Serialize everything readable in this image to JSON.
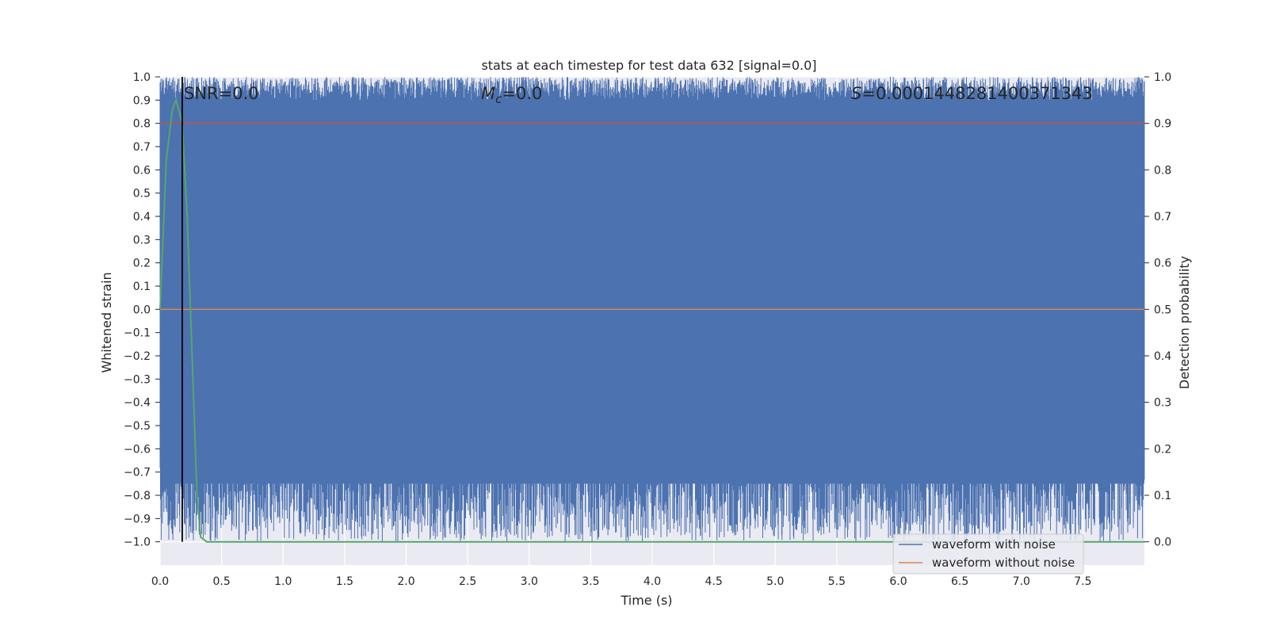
{
  "chart_data": {
    "type": "line",
    "title": "stats at each timestep for test data 632 [signal=0.0]",
    "xlabel": "Time (s)",
    "ylabel": "Whitened strain",
    "y2label": "Detection probability",
    "xlim": [
      0.0,
      8.0
    ],
    "ylim": [
      -1.1,
      1.0
    ],
    "y2lim": [
      -0.05,
      1.0
    ],
    "xticks": [
      "0.0",
      "0.5",
      "1.0",
      "1.5",
      "2.0",
      "2.5",
      "3.0",
      "3.5",
      "4.0",
      "4.5",
      "5.0",
      "5.5",
      "6.0",
      "6.5",
      "7.0",
      "7.5"
    ],
    "yticks": [
      "1.0",
      "0.9",
      "0.8",
      "0.7",
      "0.6",
      "0.5",
      "0.4",
      "0.3",
      "0.2",
      "0.1",
      "0.0",
      "−0.1",
      "−0.2",
      "−0.3",
      "−0.4",
      "−0.5",
      "−0.6",
      "−0.7",
      "−0.8",
      "−0.9",
      "−1.0"
    ],
    "y2ticks": [
      "1.0",
      "0.9",
      "0.8",
      "0.7",
      "0.6",
      "0.5",
      "0.4",
      "0.3",
      "0.2",
      "0.1",
      "0.0"
    ],
    "grid": true,
    "legend_position": "lower-right",
    "annotations": {
      "snr": "SNR=0.0",
      "mc_symbol": "M",
      "mc_sub": "c",
      "mc_value": "=0.0",
      "s_symbol": "S",
      "s_value": "=0.0001448281400371343"
    },
    "series": [
      {
        "name": "waveform with noise",
        "color": "#4c72b0",
        "axis": "left",
        "values": "dense noise filling approximately -1.0 to 1.0"
      },
      {
        "name": "waveform without noise",
        "color": "#dd8452",
        "axis": "left",
        "values": [
          [
            0.0,
            0.0
          ],
          [
            8.0,
            0.0
          ]
        ]
      },
      {
        "axis": "right",
        "color": "#55a868",
        "x": [
          0.0,
          0.05,
          0.1,
          0.13,
          0.18,
          0.22,
          0.26,
          0.3,
          0.33,
          0.38,
          8.0
        ],
        "values": [
          0.5,
          0.82,
          0.93,
          0.95,
          0.9,
          0.7,
          0.4,
          0.1,
          0.01,
          0.0,
          0.0
        ]
      },
      {
        "axis": "right",
        "color": "#dd8452",
        "x": [
          0.0,
          8.0
        ],
        "values": [
          0.9,
          0.9
        ]
      },
      {
        "axis": "left",
        "color": "#000000",
        "type": "vline",
        "x": 0.18,
        "ylim": [
          -1.0,
          1.0
        ]
      }
    ],
    "colors": {
      "background": "#eaeaf2",
      "grid": "#ffffff",
      "noise": "#4c72b0",
      "clean": "#dd8452",
      "prob": "#55a868",
      "threshold": "#c44e52",
      "marker": "#000000"
    }
  }
}
